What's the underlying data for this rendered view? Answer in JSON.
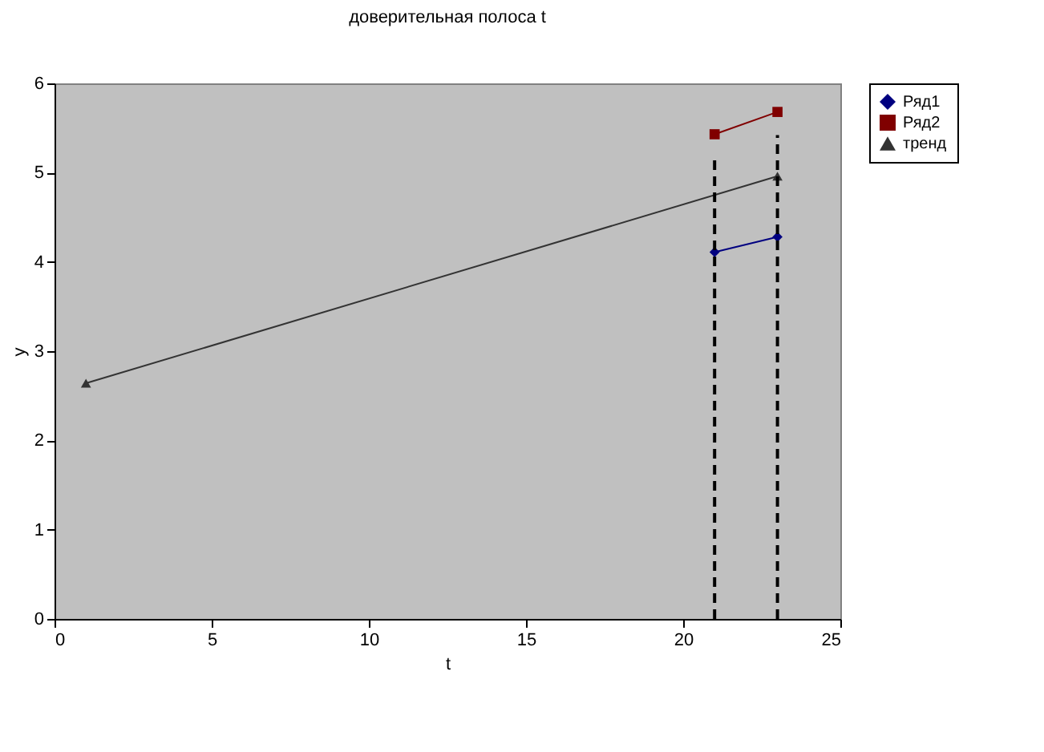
{
  "chart_data": {
    "type": "line",
    "title": "доверительная полоса t",
    "xlabel": "t",
    "ylabel": "y",
    "xlim": [
      0,
      25
    ],
    "xticks": [
      0,
      5,
      10,
      15,
      20,
      25
    ],
    "ylim": [
      0,
      6
    ],
    "yticks": [
      0,
      1,
      2,
      3,
      4,
      5,
      6
    ],
    "grid": false,
    "legend": "right",
    "series": [
      {
        "name": "Ряд1",
        "color": "#000080",
        "x": [
          21,
          23
        ],
        "values": [
          4.11,
          4.28
        ],
        "marker": "diamond"
      },
      {
        "name": "Ряд2",
        "color": "#800000",
        "x": [
          21,
          23
        ],
        "values": [
          5.43,
          5.68
        ],
        "marker": "square"
      },
      {
        "name": "тренд",
        "color": "#333333",
        "x": [
          1,
          23
        ],
        "values": [
          2.64,
          4.96
        ],
        "marker": "triangle"
      },
      {
        "color": "#000000",
        "x": [
          21,
          21
        ],
        "values": [
          0,
          5.21
        ],
        "marker": "none",
        "line_style": "dashed"
      },
      {
        "color": "#000000",
        "x": [
          23,
          23
        ],
        "values": [
          0,
          5.42
        ],
        "marker": "none",
        "line_style": "dashed"
      }
    ]
  }
}
